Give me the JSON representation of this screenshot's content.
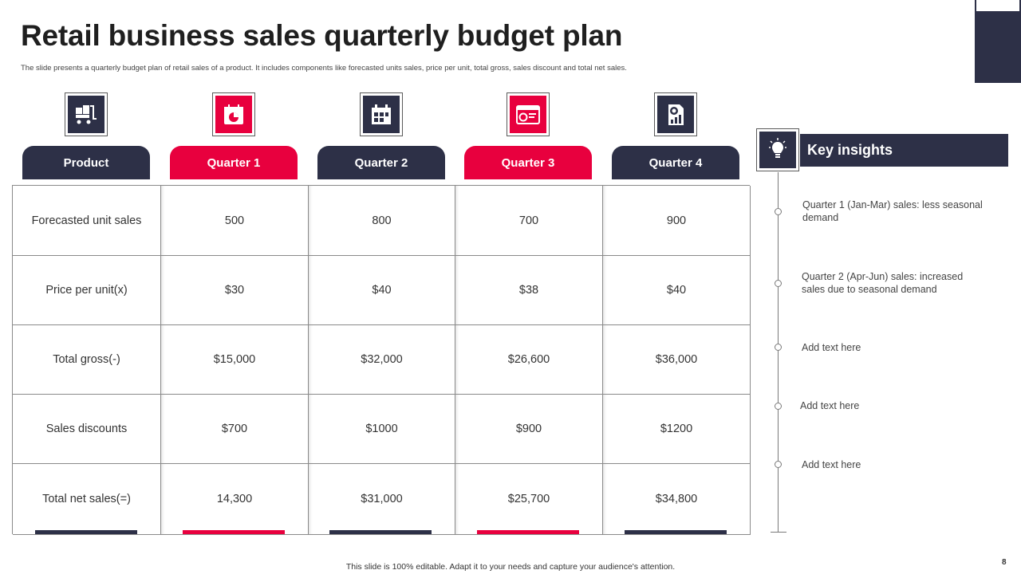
{
  "slide": {
    "title": "Retail business sales quarterly budget plan",
    "subtitle": "The slide presents a quarterly budget plan  of retail sales of a product. It includes components like  forecasted units sales, price per unit, total gross, sales discount and total net sales.",
    "footer": "This slide is 100% editable.  Adapt it to your needs and capture your audience's attention.",
    "page_number": "8"
  },
  "colors": {
    "dark": "#2d3047",
    "accent": "#e8003e"
  },
  "columns": [
    {
      "label": "Product",
      "style": "dark",
      "icon": "cart-boxes-icon"
    },
    {
      "label": "Quarter 1",
      "style": "red",
      "icon": "calendar-chart-icon"
    },
    {
      "label": "Quarter 2",
      "style": "dark",
      "icon": "calendar-grid-icon"
    },
    {
      "label": "Quarter 3",
      "style": "red",
      "icon": "browser-window-icon"
    },
    {
      "label": "Quarter 4",
      "style": "dark",
      "icon": "report-chart-icon"
    }
  ],
  "rows": [
    {
      "label": "Forecasted unit sales",
      "values": [
        "500",
        "800",
        "700",
        "900"
      ]
    },
    {
      "label": "Price per unit(x)",
      "values": [
        "$30",
        "$40",
        "$38",
        "$40"
      ]
    },
    {
      "label": "Total gross(-)",
      "values": [
        "$15,000",
        "$32,000",
        "$26,600",
        "$36,000"
      ]
    },
    {
      "label": "Sales discounts",
      "values": [
        "$700",
        "$1000",
        "$900",
        "$1200"
      ]
    },
    {
      "label": "Total net sales(=)",
      "values": [
        "14,300",
        "$31,000",
        "$25,700",
        "$34,800"
      ]
    }
  ],
  "insights": {
    "title": "Key insights",
    "icon": "lightbulb-icon",
    "items": [
      "Quarter  1 (Jan-Mar)  sales: less seasonal demand",
      "Quarter  2 (Apr-Jun)  sales: increased sales due to seasonal demand",
      "Add text here",
      "Add text here",
      "Add text here"
    ]
  }
}
